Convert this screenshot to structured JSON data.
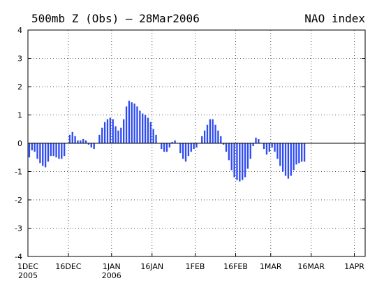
{
  "chart_data": {
    "type": "bar",
    "title": "500mb Z (Obs) — 28Mar2006",
    "subtitle": "NAO index",
    "xlabel": "",
    "ylabel": "",
    "ylim": [
      -4,
      4
    ],
    "yticks": [
      "-4",
      "-3",
      "-2",
      "-1",
      "0",
      "1",
      "2",
      "3",
      "4"
    ],
    "xlim": [
      "2005-12-01",
      "2006-04-05"
    ],
    "xticks": [
      {
        "date": "2005-12-01",
        "label": "1DEC",
        "sub": "2005"
      },
      {
        "date": "2005-12-16",
        "label": "16DEC",
        "sub": ""
      },
      {
        "date": "2006-01-01",
        "label": "1JAN",
        "sub": "2006"
      },
      {
        "date": "2006-01-16",
        "label": "16JAN",
        "sub": ""
      },
      {
        "date": "2006-02-01",
        "label": "1FEB",
        "sub": ""
      },
      {
        "date": "2006-02-16",
        "label": "16FEB",
        "sub": ""
      },
      {
        "date": "2006-03-01",
        "label": "1MAR",
        "sub": ""
      },
      {
        "date": "2006-03-16",
        "label": "16MAR",
        "sub": ""
      },
      {
        "date": "2006-04-01",
        "label": "1APR",
        "sub": ""
      }
    ],
    "grid": true,
    "series": [
      {
        "name": "",
        "start_date": "2005-12-01",
        "values": [
          -0.5,
          -0.25,
          -0.3,
          -0.55,
          -0.7,
          -0.8,
          -0.85,
          -0.65,
          -0.45,
          -0.45,
          -0.5,
          -0.55,
          -0.55,
          -0.45,
          0.0,
          0.3,
          0.4,
          0.25,
          0.1,
          0.1,
          0.15,
          0.1,
          -0.05,
          -0.15,
          -0.2,
          0.0,
          0.3,
          0.55,
          0.75,
          0.85,
          0.9,
          0.85,
          0.6,
          0.45,
          0.55,
          0.85,
          1.3,
          1.5,
          1.45,
          1.4,
          1.3,
          1.15,
          1.05,
          1.0,
          0.9,
          0.75,
          0.5,
          0.3,
          0.0,
          -0.2,
          -0.3,
          -0.3,
          -0.15,
          0.05,
          0.1,
          0.0,
          -0.35,
          -0.55,
          -0.65,
          -0.45,
          -0.3,
          -0.2,
          -0.15,
          0.0,
          0.25,
          0.45,
          0.65,
          0.85,
          0.85,
          0.65,
          0.45,
          0.25,
          -0.05,
          -0.3,
          -0.6,
          -0.95,
          -1.2,
          -1.3,
          -1.35,
          -1.3,
          -1.2,
          -0.9,
          -0.55,
          -0.1,
          0.2,
          0.15,
          0.0,
          -0.2,
          -0.4,
          -0.3,
          -0.15,
          -0.3,
          -0.55,
          -0.8,
          -1.0,
          -1.15,
          -1.25,
          -1.15,
          -0.95,
          -0.75,
          -0.7,
          -0.65,
          -0.65
        ]
      }
    ],
    "colors": {
      "bar": "#2e4bf0",
      "zero_line": "#000000",
      "grid": "#555555"
    }
  }
}
